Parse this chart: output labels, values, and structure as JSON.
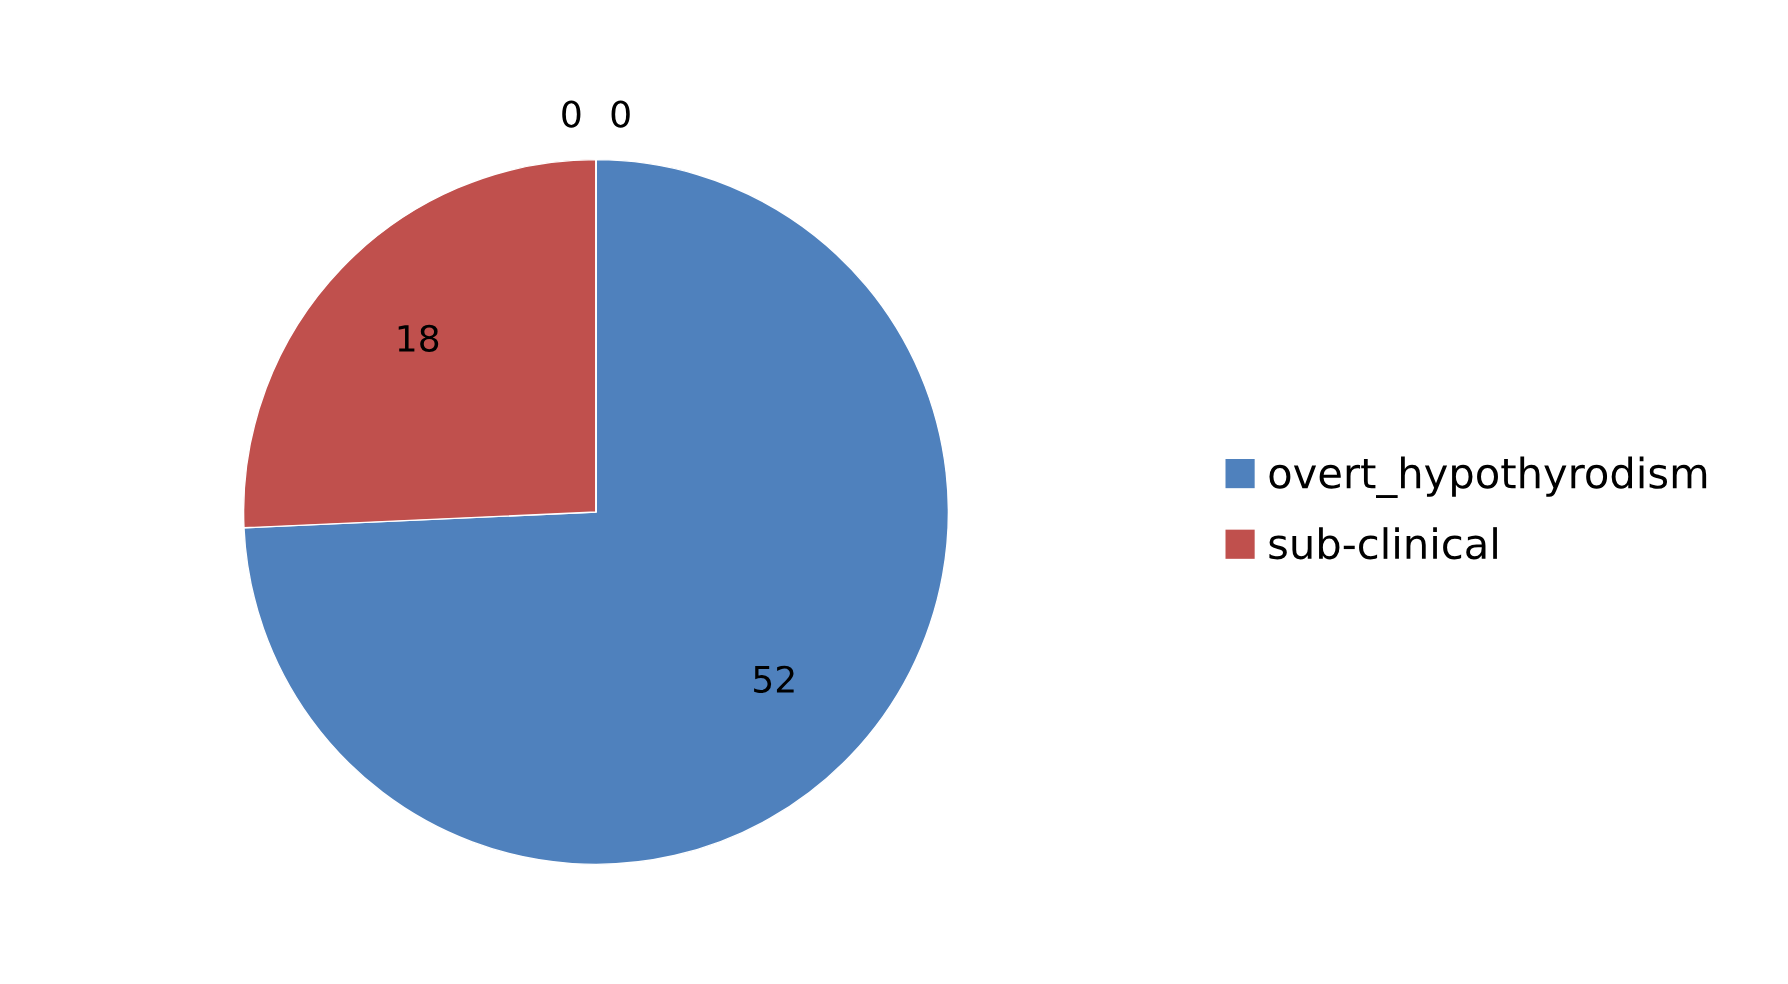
{
  "chart_data": {
    "type": "pie",
    "categories": [
      "overt_hypothyrodism",
      "sub-clinical",
      null,
      null
    ],
    "values": [
      52,
      18,
      0,
      0
    ],
    "colors": [
      "#4f81bd",
      "#c0504d",
      "#9bbb59",
      "#8064a2"
    ],
    "value_labels": [
      "52",
      "18",
      "0",
      "0"
    ],
    "legend": "right"
  }
}
